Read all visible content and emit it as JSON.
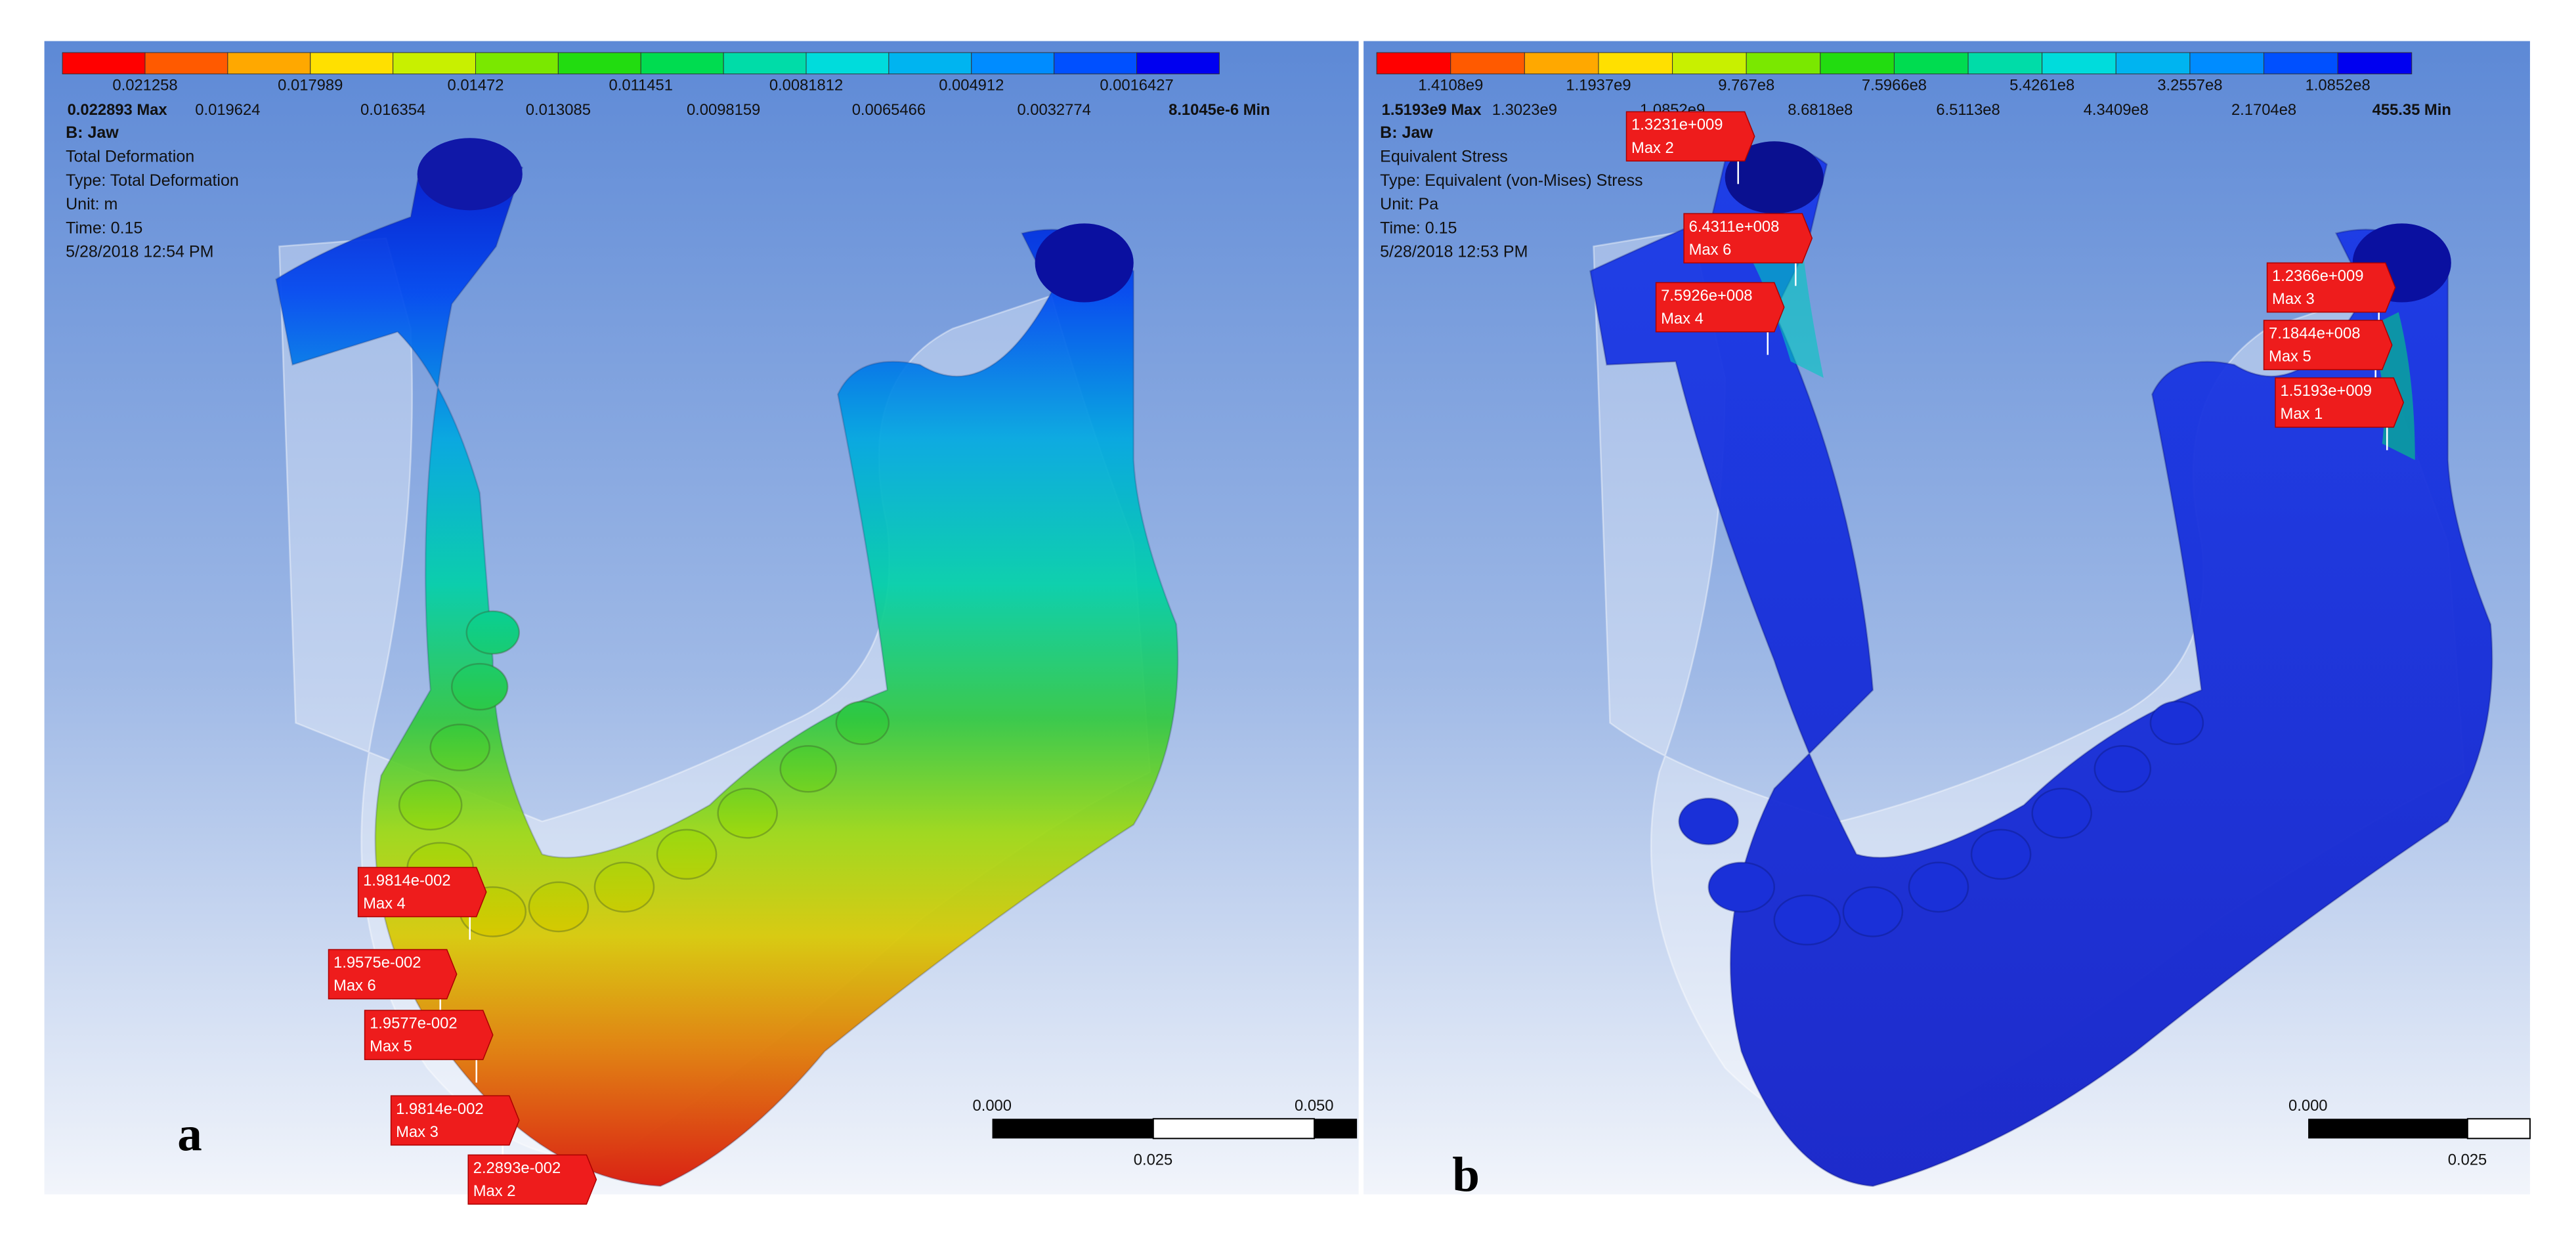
{
  "panels": [
    {
      "label": "a",
      "legend": {
        "colors": [
          "#ff0000",
          "#ff5a00",
          "#ffa800",
          "#ffe000",
          "#c8f000",
          "#7ae800",
          "#22dc10",
          "#00dc50",
          "#00dca8",
          "#00dcdc",
          "#00b4f0",
          "#008cff",
          "#0050ff",
          "#0000f0"
        ],
        "top_labels": [
          "0.021258",
          "0.017989",
          "0.01472",
          "0.011451",
          "0.0081812",
          "0.004912",
          "0.0016427"
        ],
        "bottom_labels": [
          "0.022893 Max",
          "0.019624",
          "0.016354",
          "0.013085",
          "0.0098159",
          "0.0065466",
          "0.0032774",
          "8.1045e-6 Min"
        ]
      },
      "info": [
        "B: Jaw",
        "Total Deformation",
        "Type: Total Deformation",
        "Unit: m",
        "Time: 0.15",
        "5/28/2018 12:54 PM"
      ],
      "probes": [
        {
          "value": "1.9814e-002",
          "name": "Max 4"
        },
        {
          "value": "1.9575e-002",
          "name": "Max 6"
        },
        {
          "value": "1.9577e-002",
          "name": "Max 5"
        },
        {
          "value": "1.9814e-002",
          "name": "Max 3"
        },
        {
          "value": "2.2893e-002",
          "name": "Max 2"
        }
      ],
      "scale": {
        "start": "0.000",
        "end": "0.050",
        "mid": "0.025"
      }
    },
    {
      "label": "b",
      "legend": {
        "colors": [
          "#ff0000",
          "#ff5a00",
          "#ffa800",
          "#ffe000",
          "#c8f000",
          "#7ae800",
          "#22dc10",
          "#00dc50",
          "#00dca8",
          "#00dcdc",
          "#00b4f0",
          "#008cff",
          "#0050ff",
          "#0000f0"
        ],
        "top_labels": [
          "1.4108e9",
          "1.1937e9",
          "9.767e8",
          "7.5966e8",
          "5.4261e8",
          "3.2557e8",
          "1.0852e8"
        ],
        "bottom_labels": [
          "1.5193e9 Max",
          "1.3023e9",
          "1.0852e9",
          "8.6818e8",
          "6.5113e8",
          "4.3409e8",
          "2.1704e8",
          "455.35 Min"
        ]
      },
      "info": [
        "B: Jaw",
        "Equivalent Stress",
        "Type: Equivalent (von-Mises) Stress",
        "Unit: Pa",
        "Time: 0.15",
        "5/28/2018 12:53 PM"
      ],
      "probes": [
        {
          "value": "1.3231e+009",
          "name": "Max 2"
        },
        {
          "value": "6.4311e+008",
          "name": "Max 6"
        },
        {
          "value": "7.5926e+008",
          "name": "Max 4"
        },
        {
          "value": "1.2366e+009",
          "name": "Max 3"
        },
        {
          "value": "7.1844e+008",
          "name": "Max 5"
        },
        {
          "value": "1.5193e+009",
          "name": "Max 1"
        }
      ],
      "scale": {
        "start": "0.000",
        "mid": "0.025"
      }
    }
  ]
}
